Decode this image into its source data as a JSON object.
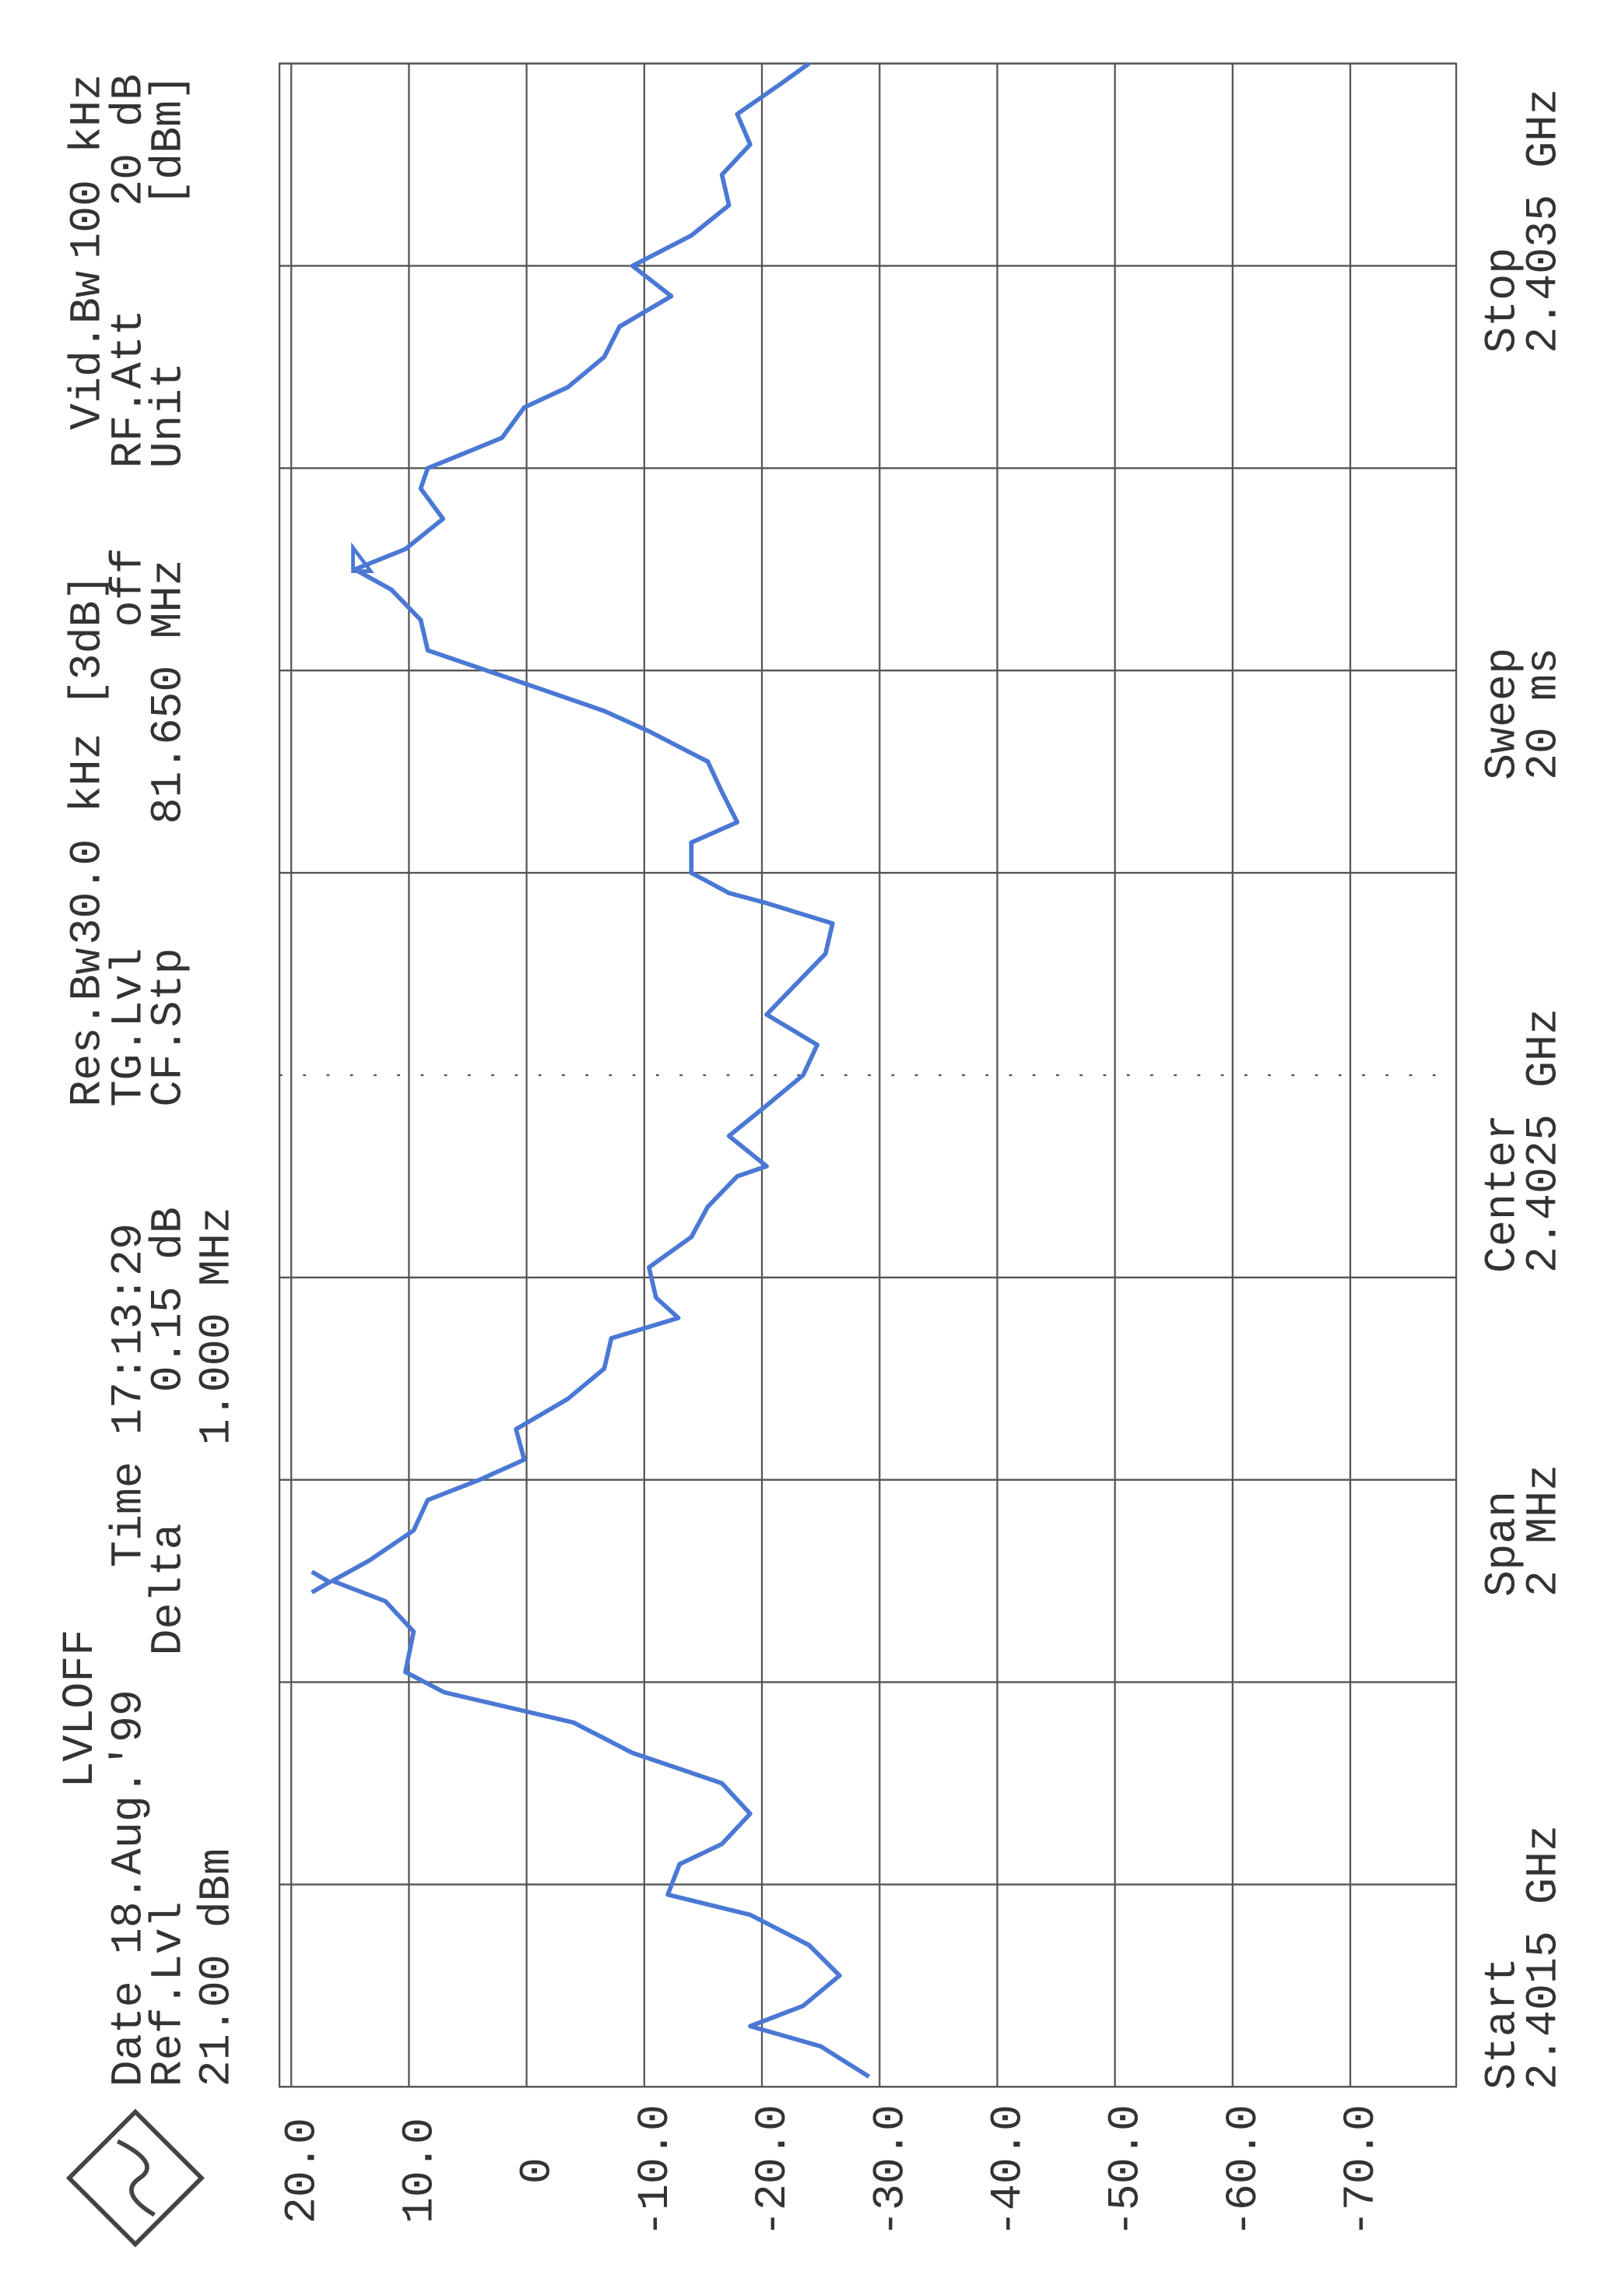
{
  "chart_data": {
    "type": "line",
    "x": [
      2.40151,
      2.40154,
      2.40156,
      2.40158,
      2.40161,
      2.40164,
      2.40167,
      2.40169,
      2.40172,
      2.40174,
      2.40177,
      2.4018,
      2.40183,
      2.40186,
      2.40189,
      2.40191,
      2.40195,
      2.40198,
      2.402,
      2.40202,
      2.40205,
      2.40208,
      2.4021,
      2.40212,
      2.40215,
      2.40218,
      2.40221,
      2.40224,
      2.40226,
      2.40228,
      2.40231,
      2.40234,
      2.40237,
      2.4024,
      2.40241,
      2.40244,
      2.40247,
      2.4025,
      2.40253,
      2.40256,
      2.40259,
      2.40262,
      2.40265,
      2.40267,
      2.40268,
      2.4027,
      2.40273,
      2.40275,
      2.40278,
      2.40281,
      2.40284,
      2.40286,
      2.40288,
      2.4029,
      2.40292,
      2.40295,
      2.40298,
      2.403,
      2.40302,
      2.40305,
      2.40308,
      2.4031,
      2.40313,
      2.40316,
      2.40318,
      2.40321,
      2.40324,
      2.40327,
      2.4033,
      2.40333,
      2.40336,
      2.40339,
      2.40342,
      2.40345,
      2.40348,
      2.4035
    ],
    "series": [
      {
        "color": "#4a78d4",
        "values": [
          -29.1,
          -25,
          -19,
          -23.5,
          -26.6,
          -24,
          -19,
          -12,
          -13,
          -16.6,
          -19,
          -16.6,
          -9,
          -4,
          7,
          10.3,
          9.6,
          12,
          16.5,
          13.4,
          9.6,
          8.4,
          4,
          0.2,
          0.9,
          -3.5,
          -6.6,
          -7.2,
          -12.9,
          -11,
          -10.4,
          -14,
          -15.4,
          -17.9,
          -20.4,
          -17.2,
          -20.4,
          -23.5,
          -24.7,
          -20.4,
          -22.9,
          -25.4,
          -26,
          -20.4,
          -17.2,
          -14,
          -14,
          -17.9,
          -16.6,
          -15.4,
          -10.4,
          -6.6,
          -1.6,
          3.4,
          8.4,
          9,
          11.5,
          14.6,
          10.3,
          7.1,
          9,
          8.4,
          2.1,
          0.2,
          -3.5,
          -6.6,
          -7.9,
          -12.3,
          -9,
          -14,
          -17.2,
          -16.6,
          -19,
          -17.9,
          -21.6,
          -24
        ]
      }
    ],
    "xlim": [
      2.4015,
      2.4035
    ],
    "xticks": [
      2.4015,
      2.4017,
      2.4019,
      2.4021,
      2.4023,
      2.4025,
      2.4027,
      2.4029,
      2.4031,
      2.4033,
      2.4035
    ],
    "ylim": [
      -79,
      21
    ],
    "yticks": [
      {
        "value": 20,
        "label": "20.0"
      },
      {
        "value": 10,
        "label": "10.0"
      },
      0,
      {
        "value": -10,
        "label": "-10.0"
      },
      {
        "value": -20,
        "label": "-20.0"
      },
      {
        "value": -30,
        "label": "-30.0"
      },
      {
        "value": -40,
        "label": "-40.0"
      },
      {
        "value": -50,
        "label": "-50.0"
      },
      {
        "value": -60,
        "label": "-60.0"
      },
      {
        "value": -70,
        "label": "-70.0"
      }
    ],
    "grid": true
  },
  "header": {
    "lvloff": "LVLOFF",
    "date": "Date 18.Aug.'99",
    "time": "Time 17:13:29",
    "ref_lvl_label": "Ref.Lvl",
    "ref_lvl": "21.00 dBm",
    "delta": "Delta",
    "delta_level": "0.15 dB",
    "delta_freq": "1.000 MHz",
    "res_bw_label": "Res.Bw",
    "tg_lvl_label": "TG.Lvl",
    "cf_stp_label": "CF.Stp",
    "res_bw": "30.0 kHz [3dB]",
    "tg_lvl": "off",
    "cf_stp": "81.650 MHz",
    "vid_bw_label": "Vid.Bw",
    "rf_att_label": "RF.Att",
    "unit_label": "Unit",
    "vid_bw": "100 kHz",
    "rf_att": "20 dB",
    "unit": "[dBm]"
  },
  "footer": {
    "start_label": "Start",
    "start": "2.4015 GHz",
    "span_label": "Span",
    "span": "2 MHz",
    "center_label": "Center",
    "center": "2.4025 GHz",
    "sweep_label": "Sweep",
    "sweep": "20 ms",
    "stop_label": "Stop",
    "stop": "2.4035 GHz"
  }
}
